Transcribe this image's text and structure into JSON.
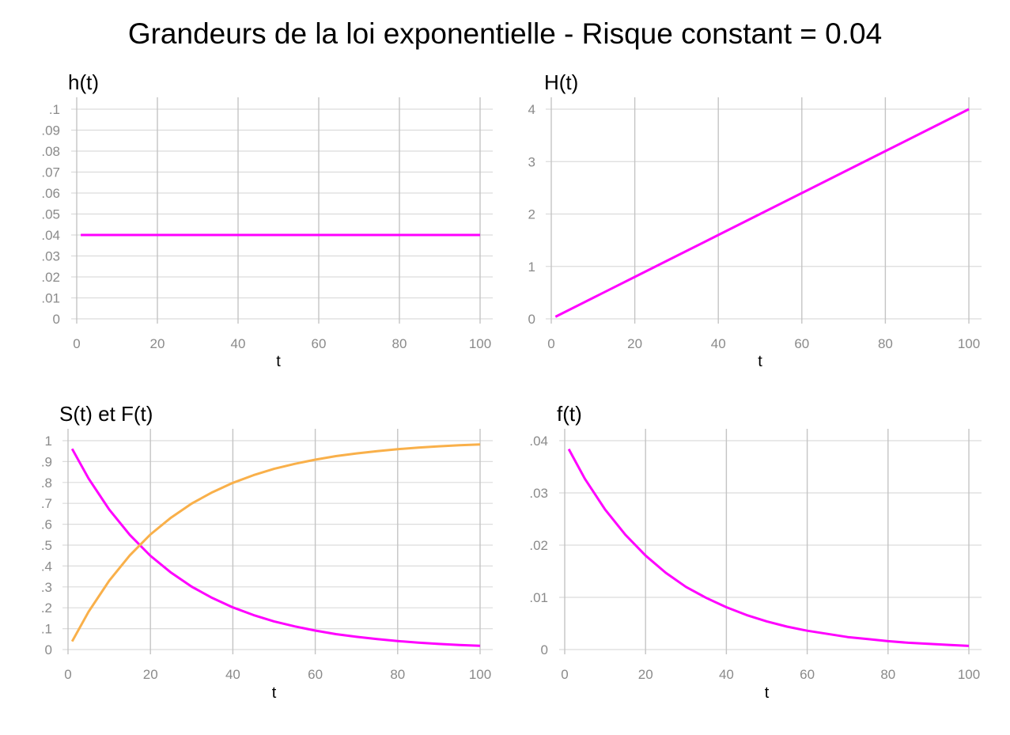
{
  "title": "Grandeurs de la loi exponentielle - Risque constant = 0.04",
  "chart_data": [
    {
      "type": "line",
      "title": "h(t)",
      "xlabel": "t",
      "ylabel": "",
      "xlim": [
        0,
        100
      ],
      "ylim": [
        0,
        0.1
      ],
      "xticks": [
        0,
        20,
        40,
        60,
        80,
        100
      ],
      "xtick_labels": [
        "0",
        "20",
        "40",
        "60",
        "80",
        "100"
      ],
      "yticks": [
        0,
        0.01,
        0.02,
        0.03,
        0.04,
        0.05,
        0.06,
        0.07,
        0.08,
        0.09,
        0.1
      ],
      "ytick_labels": [
        "0",
        ".01",
        ".02",
        ".03",
        ".04",
        ".05",
        ".06",
        ".07",
        ".08",
        ".09",
        ".1"
      ],
      "grid": true,
      "series": [
        {
          "color": "#ff00ff",
          "x": [
            1,
            10,
            20,
            30,
            40,
            50,
            60,
            70,
            80,
            90,
            100
          ],
          "y": [
            0.04,
            0.04,
            0.04,
            0.04,
            0.04,
            0.04,
            0.04,
            0.04,
            0.04,
            0.04,
            0.04
          ]
        }
      ]
    },
    {
      "type": "line",
      "title": "H(t)",
      "xlabel": "t",
      "ylabel": "",
      "xlim": [
        0,
        100
      ],
      "ylim": [
        0,
        4
      ],
      "xticks": [
        0,
        20,
        40,
        60,
        80,
        100
      ],
      "xtick_labels": [
        "0",
        "20",
        "40",
        "60",
        "80",
        "100"
      ],
      "yticks": [
        0,
        1,
        2,
        3,
        4
      ],
      "ytick_labels": [
        "0",
        "1",
        "2",
        "3",
        "4"
      ],
      "grid": true,
      "series": [
        {
          "color": "#ff00ff",
          "x": [
            1,
            10,
            20,
            30,
            40,
            50,
            60,
            70,
            80,
            90,
            100
          ],
          "y": [
            0.04,
            0.4,
            0.8,
            1.2,
            1.6,
            2.0,
            2.4,
            2.8,
            3.2,
            3.6,
            4.0
          ]
        }
      ]
    },
    {
      "type": "line",
      "title": "S(t) et F(t)",
      "xlabel": "t",
      "ylabel": "",
      "xlim": [
        0,
        100
      ],
      "ylim": [
        0,
        1
      ],
      "xticks": [
        0,
        20,
        40,
        60,
        80,
        100
      ],
      "xtick_labels": [
        "0",
        "20",
        "40",
        "60",
        "80",
        "100"
      ],
      "yticks": [
        0,
        0.1,
        0.2,
        0.3,
        0.4,
        0.5,
        0.6,
        0.7,
        0.8,
        0.9,
        1
      ],
      "ytick_labels": [
        "0",
        ".1",
        ".2",
        ".3",
        ".4",
        ".5",
        ".6",
        ".7",
        ".8",
        ".9",
        "1"
      ],
      "grid": true,
      "series": [
        {
          "color": "#ff00ff",
          "x": [
            1,
            5,
            10,
            15,
            20,
            25,
            30,
            35,
            40,
            45,
            50,
            55,
            60,
            65,
            70,
            75,
            80,
            85,
            90,
            95,
            100
          ],
          "y": [
            0.961,
            0.819,
            0.67,
            0.549,
            0.449,
            0.368,
            0.301,
            0.247,
            0.202,
            0.165,
            0.135,
            0.111,
            0.091,
            0.074,
            0.061,
            0.05,
            0.041,
            0.033,
            0.027,
            0.022,
            0.018
          ]
        },
        {
          "color": "#f9b04a",
          "x": [
            1,
            5,
            10,
            15,
            20,
            25,
            30,
            35,
            40,
            45,
            50,
            55,
            60,
            65,
            70,
            75,
            80,
            85,
            90,
            95,
            100
          ],
          "y": [
            0.039,
            0.181,
            0.33,
            0.451,
            0.551,
            0.632,
            0.699,
            0.753,
            0.798,
            0.835,
            0.865,
            0.889,
            0.909,
            0.926,
            0.939,
            0.95,
            0.959,
            0.967,
            0.973,
            0.978,
            0.982
          ]
        }
      ]
    },
    {
      "type": "line",
      "title": "f(t)",
      "xlabel": "t",
      "ylabel": "",
      "xlim": [
        0,
        100
      ],
      "ylim": [
        0,
        0.04
      ],
      "xticks": [
        0,
        20,
        40,
        60,
        80,
        100
      ],
      "xtick_labels": [
        "0",
        "20",
        "40",
        "60",
        "80",
        "100"
      ],
      "yticks": [
        0,
        0.01,
        0.02,
        0.03,
        0.04
      ],
      "ytick_labels": [
        "0",
        ".01",
        ".02",
        ".03",
        ".04"
      ],
      "grid": true,
      "series": [
        {
          "color": "#ff00ff",
          "x": [
            1,
            5,
            10,
            15,
            20,
            25,
            30,
            35,
            40,
            45,
            50,
            55,
            60,
            65,
            70,
            75,
            80,
            85,
            90,
            95,
            100
          ],
          "y": [
            0.0384,
            0.0327,
            0.0268,
            0.022,
            0.018,
            0.0147,
            0.012,
            0.0099,
            0.0081,
            0.0066,
            0.0054,
            0.0044,
            0.0036,
            0.003,
            0.0024,
            0.002,
            0.0016,
            0.0013,
            0.0011,
            0.0009,
            0.0007
          ]
        }
      ]
    }
  ]
}
